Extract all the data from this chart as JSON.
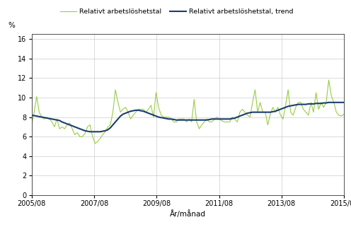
{
  "xlabel": "År/månad",
  "ylabel": "%",
  "legend_labels": [
    "Relativt arbetslöshetstal",
    "Relativt arbetslöshetstal, trend"
  ],
  "line_color_actual": "#99cc44",
  "line_color_trend": "#1a3d6e",
  "xtick_labels": [
    "2005/08",
    "2007/08",
    "2009/08",
    "2011/08",
    "2013/08",
    "2015/08"
  ],
  "ytick_values": [
    0,
    2,
    4,
    6,
    8,
    10,
    12,
    14,
    16
  ],
  "ylim": [
    0,
    16.5
  ],
  "xlim": [
    0,
    120
  ],
  "actual": [
    7.2,
    8.5,
    10.1,
    8.5,
    8.0,
    7.8,
    8.0,
    7.8,
    7.5,
    7.0,
    7.8,
    6.8,
    7.0,
    6.8,
    7.2,
    7.4,
    6.8,
    6.2,
    6.4,
    6.0,
    6.0,
    6.3,
    7.0,
    7.2,
    6.0,
    5.3,
    5.5,
    5.8,
    6.2,
    6.5,
    7.0,
    7.2,
    8.5,
    10.8,
    9.5,
    8.5,
    8.8,
    9.0,
    8.5,
    7.8,
    8.2,
    8.5,
    8.8,
    8.8,
    8.8,
    8.5,
    8.8,
    9.2,
    8.0,
    10.5,
    9.0,
    8.2,
    8.0,
    8.0,
    8.0,
    7.8,
    7.5,
    7.5,
    7.8,
    7.8,
    7.8,
    7.5,
    7.8,
    7.5,
    9.8,
    7.5,
    6.8,
    7.2,
    7.5,
    7.8,
    7.5,
    7.5,
    7.8,
    8.0,
    7.8,
    7.6,
    7.5,
    7.5,
    7.5,
    8.0,
    7.8,
    7.5,
    8.5,
    8.8,
    8.5,
    8.2,
    8.0,
    9.5,
    10.8,
    8.5,
    9.5,
    8.5,
    8.5,
    7.2,
    8.3,
    9.0,
    8.5,
    9.0,
    8.2,
    7.8,
    9.2,
    10.8,
    8.5,
    8.2,
    9.0,
    9.5,
    9.5,
    8.8,
    8.5,
    8.2,
    9.5,
    8.5,
    10.5,
    8.8,
    9.5,
    9.0,
    9.5,
    11.8,
    10.2,
    9.5,
    8.5,
    8.2,
    8.1,
    8.3
  ],
  "trend": [
    8.2,
    8.15,
    8.1,
    8.05,
    8.0,
    7.95,
    7.9,
    7.85,
    7.8,
    7.75,
    7.7,
    7.65,
    7.5,
    7.4,
    7.3,
    7.2,
    7.1,
    7.0,
    6.9,
    6.8,
    6.7,
    6.6,
    6.55,
    6.5,
    6.5,
    6.5,
    6.5,
    6.5,
    6.55,
    6.6,
    6.7,
    6.9,
    7.2,
    7.5,
    7.8,
    8.1,
    8.3,
    8.4,
    8.5,
    8.6,
    8.65,
    8.7,
    8.7,
    8.65,
    8.6,
    8.5,
    8.4,
    8.3,
    8.2,
    8.1,
    8.0,
    7.95,
    7.9,
    7.85,
    7.8,
    7.8,
    7.75,
    7.7,
    7.7,
    7.7,
    7.7,
    7.7,
    7.7,
    7.7,
    7.7,
    7.7,
    7.7,
    7.7,
    7.7,
    7.7,
    7.75,
    7.8,
    7.8,
    7.8,
    7.8,
    7.8,
    7.8,
    7.8,
    7.8,
    7.85,
    7.9,
    8.0,
    8.1,
    8.2,
    8.3,
    8.4,
    8.45,
    8.5,
    8.5,
    8.5,
    8.5,
    8.5,
    8.5,
    8.5,
    8.5,
    8.55,
    8.6,
    8.7,
    8.8,
    8.9,
    9.0,
    9.1,
    9.15,
    9.2,
    9.25,
    9.3,
    9.3,
    9.3,
    9.3,
    9.35,
    9.35,
    9.35,
    9.4,
    9.4,
    9.4,
    9.45,
    9.45,
    9.5,
    9.5,
    9.5,
    9.5,
    9.5,
    9.5,
    9.5
  ]
}
